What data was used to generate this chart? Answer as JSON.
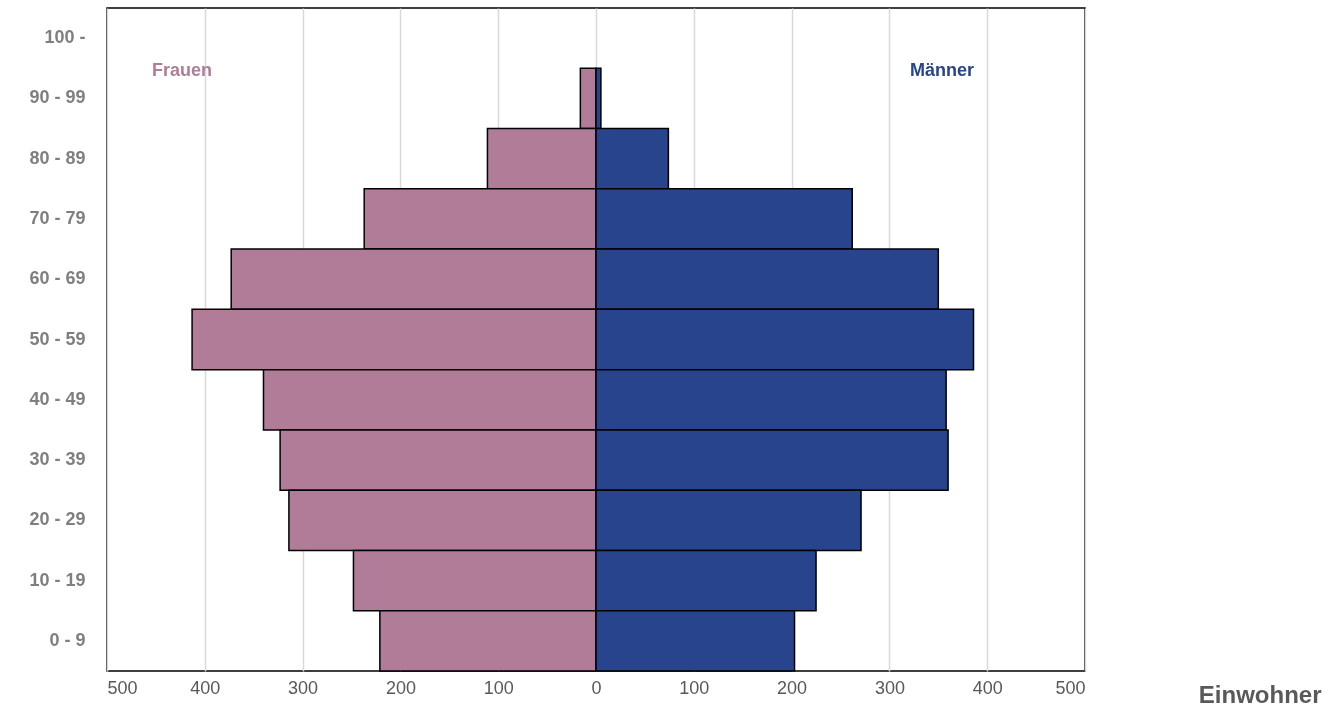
{
  "chart_data": {
    "type": "bar",
    "orientation": "horizontal",
    "stacked": true,
    "xlabel": "Einwohner",
    "categories": [
      "100 -",
      "90 - 99",
      "80 - 89",
      "70 - 79",
      "60 - 69",
      "50 - 59",
      "40 - 49",
      "30 - 39",
      "20 - 29",
      "10 - 19",
      "0 - 9"
    ],
    "series": [
      {
        "name": "Frauen",
        "color": "#b07c98",
        "values": [
          null,
          -16,
          -111,
          -237,
          -373,
          -413,
          -340,
          -323,
          -314,
          -248,
          -221
        ]
      },
      {
        "name": "Männer",
        "color": "#27448c",
        "values": [
          null,
          5,
          74,
          262,
          350,
          386,
          358,
          360,
          271,
          225,
          203
        ]
      }
    ],
    "xlim": [
      -500,
      500
    ],
    "xticks": [
      {
        "value": -500,
        "label": "500"
      },
      {
        "value": -400,
        "label": "400"
      },
      {
        "value": -300,
        "label": "300"
      },
      {
        "value": -200,
        "label": "200"
      },
      {
        "value": -100,
        "label": "100"
      },
      0,
      100,
      200,
      300,
      400,
      500
    ],
    "grid": "x",
    "legend": false
  }
}
